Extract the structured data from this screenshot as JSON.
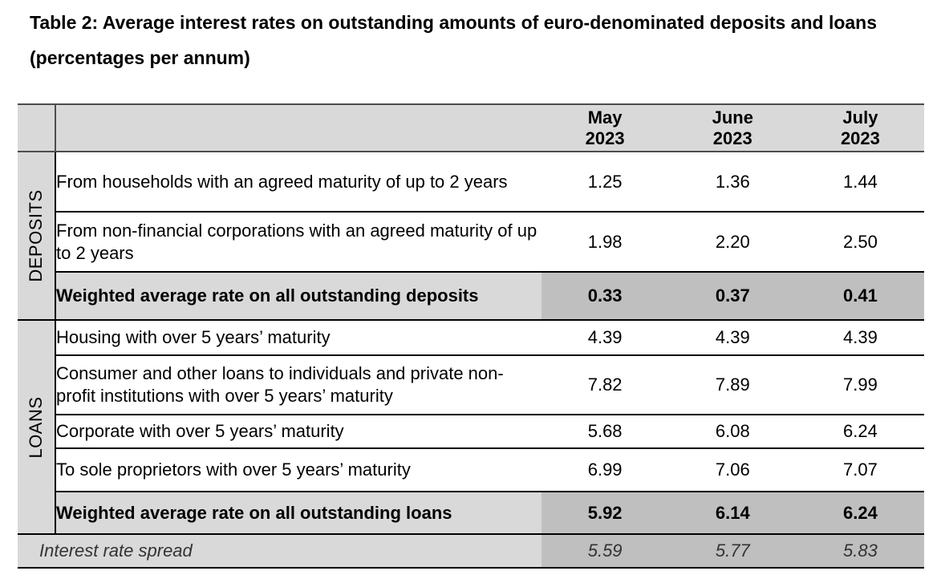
{
  "title": "Table 2: Average interest rates on outstanding amounts of euro-denominated deposits and loans (percentages per annum)",
  "header": {
    "columns": [
      {
        "month": "May",
        "year": "2023"
      },
      {
        "month": "June",
        "year": "2023"
      },
      {
        "month": "July",
        "year": "2023"
      }
    ]
  },
  "deposits": {
    "section_label": "DEPOSITS",
    "rows": [
      {
        "label": "From households with an agreed maturity of up to 2 years",
        "values": [
          "1.25",
          "1.36",
          "1.44"
        ]
      },
      {
        "label": "From non-financial corporations with an agreed maturity of up to 2 years",
        "values": [
          "1.98",
          "2.20",
          "2.50"
        ]
      }
    ],
    "total": {
      "label": "Weighted average rate on all outstanding deposits",
      "values": [
        "0.33",
        "0.37",
        "0.41"
      ]
    }
  },
  "loans": {
    "section_label": "LOANS",
    "rows": [
      {
        "label": "Housing with over 5 years’ maturity",
        "values": [
          "4.39",
          "4.39",
          "4.39"
        ]
      },
      {
        "label": "Consumer and other loans to individuals and private non-profit institutions with over 5 years’ maturity",
        "values": [
          "7.82",
          "7.89",
          "7.99"
        ]
      },
      {
        "label": "Corporate with over 5 years’ maturity",
        "values": [
          "5.68",
          "6.08",
          "6.24"
        ]
      },
      {
        "label": "To sole proprietors with over 5 years’ maturity",
        "values": [
          "6.99",
          "7.06",
          "7.07"
        ]
      }
    ],
    "total": {
      "label": "Weighted average rate on all outstanding loans",
      "values": [
        "5.92",
        "6.14",
        "6.24"
      ]
    }
  },
  "spread": {
    "label": "Interest rate spread",
    "values": [
      "5.59",
      "5.77",
      "5.83"
    ]
  }
}
